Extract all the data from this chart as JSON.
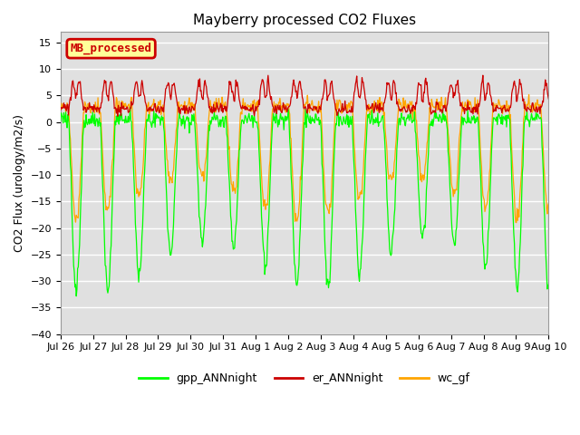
{
  "title": "Mayberry processed CO2 Fluxes",
  "ylabel": "CO2 Flux (urology/m2/s)",
  "ylim": [
    -40,
    17
  ],
  "yticks": [
    15,
    10,
    5,
    0,
    -5,
    -10,
    -15,
    -20,
    -25,
    -30,
    -35,
    -40
  ],
  "legend_label": "MB_processed",
  "legend_box_color": "#FFFF99",
  "legend_box_edge": "#CC0000",
  "line_gpp_color": "#00FF00",
  "line_er_color": "#CC0000",
  "line_wc_color": "#FFA500",
  "bg_color": "#E0E0E0",
  "n_days": 15.5,
  "pts_per_day": 48,
  "series_labels": [
    "gpp_ANNnight",
    "er_ANNnight",
    "wc_gf"
  ],
  "xticklabels": [
    "Jul 26",
    "Jul 27",
    "Jul 28",
    "Jul 29",
    "Jul 30",
    "Jul 31",
    "Aug 1",
    "Aug 2",
    "Aug 3",
    "Aug 4",
    "Aug 5",
    "Aug 6",
    "Aug 7",
    "Aug 8",
    "Aug 9",
    "Aug 10"
  ],
  "title_fontsize": 11,
  "axis_fontsize": 9,
  "tick_fontsize": 8
}
